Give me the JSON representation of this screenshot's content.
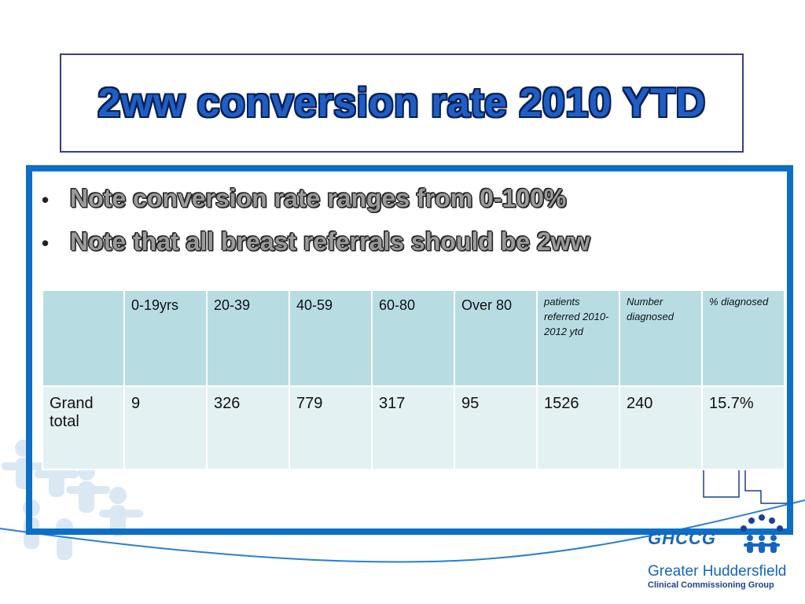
{
  "title": "2ww conversion rate 2010 YTD",
  "bullets": [
    "Note conversion rate ranges from 0-100%",
    "Note that all breast referrals should be 2ww"
  ],
  "table": {
    "headers": [
      "",
      "0-19yrs",
      "20-39",
      "40-59",
      "60-80",
      "Over 80",
      "patients referred 2010-2012 ytd",
      "Number diagnosed",
      "% diagnosed"
    ],
    "rows": [
      [
        "Grand total",
        "9",
        "326",
        "779",
        "317",
        "95",
        "1526",
        "240",
        "15.7%"
      ]
    ]
  },
  "logo": {
    "abbr": "GHCCG",
    "name": "Greater Huddersfield",
    "subtitle": "Clinical Commissioning Group"
  },
  "colors": {
    "title_fill": "#1f5fc4",
    "frame_blue": "#0b6fc7",
    "header_cell": "#b7dde3",
    "body_cell": "#e3f1f3"
  }
}
